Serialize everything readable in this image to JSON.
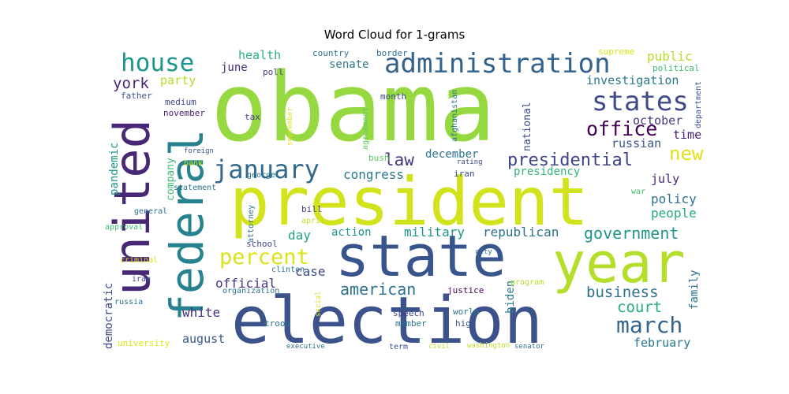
{
  "title": "Word Cloud for 1-grams",
  "chart_data": {
    "type": "wordcloud",
    "title": "Word Cloud for 1-grams",
    "colormap": "viridis",
    "background": "#ffffff",
    "words": [
      {
        "text": "obama",
        "weight": 100,
        "color": "#95d840"
      },
      {
        "text": "president",
        "weight": 82,
        "color": "#d2e21b"
      },
      {
        "text": "election",
        "weight": 76,
        "color": "#3b528b"
      },
      {
        "text": "state",
        "weight": 70,
        "color": "#39568c"
      },
      {
        "text": "year",
        "weight": 62,
        "color": "#b5de2b"
      },
      {
        "text": "united",
        "weight": 56,
        "color": "#482777"
      },
      {
        "text": "federal",
        "weight": 52,
        "color": "#26828e"
      },
      {
        "text": "administration",
        "weight": 34,
        "color": "#33638d"
      },
      {
        "text": "states",
        "weight": 30,
        "color": "#3e4a89"
      },
      {
        "text": "house",
        "weight": 28,
        "color": "#1f968b"
      },
      {
        "text": "january",
        "weight": 27,
        "color": "#31688e"
      },
      {
        "text": "percent",
        "weight": 24,
        "color": "#dde318"
      },
      {
        "text": "march",
        "weight": 24,
        "color": "#33638d"
      },
      {
        "text": "office",
        "weight": 22,
        "color": "#440154"
      },
      {
        "text": "new",
        "weight": 22,
        "color": "#dde318"
      },
      {
        "text": "presidential",
        "weight": 20,
        "color": "#414487"
      },
      {
        "text": "american",
        "weight": 18,
        "color": "#2c728e"
      },
      {
        "text": "government",
        "weight": 17,
        "color": "#1f968b"
      },
      {
        "text": "york",
        "weight": 17,
        "color": "#482777"
      },
      {
        "text": "law",
        "weight": 16,
        "color": "#453781"
      },
      {
        "text": "business",
        "weight": 16,
        "color": "#2c728e"
      },
      {
        "text": "court",
        "weight": 16,
        "color": "#25ab82"
      },
      {
        "text": "military",
        "weight": 14,
        "color": "#1f968b"
      },
      {
        "text": "republican",
        "weight": 14,
        "color": "#2c728e"
      },
      {
        "text": "congress",
        "weight": 14,
        "color": "#2a788e"
      },
      {
        "text": "white",
        "weight": 14,
        "color": "#472d7b"
      },
      {
        "text": "official",
        "weight": 14,
        "color": "#453781"
      },
      {
        "text": "investigation",
        "weight": 13,
        "color": "#2a788e"
      },
      {
        "text": "public",
        "weight": 13,
        "color": "#b5de2b"
      },
      {
        "text": "health",
        "weight": 13,
        "color": "#29af7f"
      },
      {
        "text": "senate",
        "weight": 12,
        "color": "#2a788e"
      },
      {
        "text": "party",
        "weight": 12,
        "color": "#b5de2b"
      },
      {
        "text": "june",
        "weight": 12,
        "color": "#472d7b"
      },
      {
        "text": "day",
        "weight": 13,
        "color": "#20a386"
      },
      {
        "text": "action",
        "weight": 12,
        "color": "#1f968b"
      },
      {
        "text": "case",
        "weight": 12,
        "color": "#3e4a89"
      },
      {
        "text": "policy",
        "weight": 13,
        "color": "#2c728e"
      },
      {
        "text": "people",
        "weight": 12,
        "color": "#25ab82"
      },
      {
        "text": "july",
        "weight": 12,
        "color": "#482677"
      },
      {
        "text": "time",
        "weight": 12,
        "color": "#481f70"
      },
      {
        "text": "russian",
        "weight": 12,
        "color": "#39568c"
      },
      {
        "text": "october",
        "weight": 12,
        "color": "#453781"
      },
      {
        "text": "presidency",
        "weight": 12,
        "color": "#33b679"
      },
      {
        "text": "december",
        "weight": 11,
        "color": "#2c728e"
      },
      {
        "text": "august",
        "weight": 12,
        "color": "#39568c"
      },
      {
        "text": "february",
        "weight": 12,
        "color": "#2a788e"
      },
      {
        "text": "national",
        "weight": 11,
        "color": "#3e4a89"
      },
      {
        "text": "biden",
        "weight": 11,
        "color": "#287c8e"
      },
      {
        "text": "democratic",
        "weight": 11,
        "color": "#3e4a89"
      },
      {
        "text": "pandemic",
        "weight": 11,
        "color": "#1f968b"
      },
      {
        "text": "family",
        "weight": 11,
        "color": "#2c728e"
      },
      {
        "text": "company",
        "weight": 10,
        "color": "#3fbc73"
      },
      {
        "text": "father",
        "weight": 9,
        "color": "#3b528b"
      },
      {
        "text": "medium",
        "weight": 9,
        "color": "#3e4a89"
      },
      {
        "text": "november",
        "weight": 9,
        "color": "#482777"
      },
      {
        "text": "country",
        "weight": 9,
        "color": "#2c728e"
      },
      {
        "text": "border",
        "weight": 9,
        "color": "#2c728e"
      },
      {
        "text": "poll",
        "weight": 9,
        "color": "#404387"
      },
      {
        "text": "month",
        "weight": 9,
        "color": "#3e4a89"
      },
      {
        "text": "tax",
        "weight": 9,
        "color": "#433e85"
      },
      {
        "text": "agreement",
        "weight": 9,
        "color": "#5ec962"
      },
      {
        "text": "afghanistan",
        "weight": 8,
        "color": "#2c728e"
      },
      {
        "text": "september",
        "weight": 8,
        "color": "#dde318"
      },
      {
        "text": "supreme",
        "weight": 9,
        "color": "#dde318"
      },
      {
        "text": "political",
        "weight": 9,
        "color": "#3fbc73"
      },
      {
        "text": "department",
        "weight": 8,
        "color": "#39568c"
      },
      {
        "text": "bush",
        "weight": 8,
        "color": "#5ec962"
      },
      {
        "text": "foreign",
        "weight": 8,
        "color": "#3b528b"
      },
      {
        "text": "bank",
        "weight": 8,
        "color": "#c0df25"
      },
      {
        "text": "george",
        "weight": 8,
        "color": "#2c728e"
      },
      {
        "text": "iran",
        "weight": 8,
        "color": "#3e4a89"
      },
      {
        "text": "rating",
        "weight": 7,
        "color": "#3e4a89"
      },
      {
        "text": "statement",
        "weight": 9,
        "color": "#2c728e"
      },
      {
        "text": "war",
        "weight": 8,
        "color": "#3fbc73"
      },
      {
        "text": "general",
        "weight": 9,
        "color": "#2c728e"
      },
      {
        "text": "bill",
        "weight": 9,
        "color": "#414487"
      },
      {
        "text": "april",
        "weight": 8,
        "color": "#c0df25"
      },
      {
        "text": "attorney",
        "weight": 8,
        "color": "#2c728e"
      },
      {
        "text": "approval",
        "weight": 8,
        "color": "#3fbc73"
      },
      {
        "text": "school",
        "weight": 9,
        "color": "#404387"
      },
      {
        "text": "criminal",
        "weight": 9,
        "color": "#dde318"
      },
      {
        "text": "clinton",
        "weight": 9,
        "color": "#2c728e"
      },
      {
        "text": "city",
        "weight": 7,
        "color": "#2c728e"
      },
      {
        "text": "iraq",
        "weight": 9,
        "color": "#3e4a89"
      },
      {
        "text": "organization",
        "weight": 9,
        "color": "#2c728e"
      },
      {
        "text": "justice",
        "weight": 9,
        "color": "#440154"
      },
      {
        "text": "program",
        "weight": 8,
        "color": "#b5de2b"
      },
      {
        "text": "russia",
        "weight": 9,
        "color": "#2c728e"
      },
      {
        "text": "social",
        "weight": 7,
        "color": "#dde318"
      },
      {
        "text": "world",
        "weight": 9,
        "color": "#2c728e"
      },
      {
        "text": "speech",
        "weight": 9,
        "color": "#414487"
      },
      {
        "text": "member",
        "weight": 9,
        "color": "#2c728e"
      },
      {
        "text": "high",
        "weight": 9,
        "color": "#3b528b"
      },
      {
        "text": "troop",
        "weight": 9,
        "color": "#2c728e"
      },
      {
        "text": "university",
        "weight": 9,
        "color": "#dde318"
      },
      {
        "text": "term",
        "weight": 8,
        "color": "#3b528b"
      },
      {
        "text": "executive",
        "weight": 7,
        "color": "#2c728e"
      },
      {
        "text": "civil",
        "weight": 7,
        "color": "#c0df25"
      },
      {
        "text": "washington",
        "weight": 7,
        "color": "#c0df25"
      },
      {
        "text": "senator",
        "weight": 7,
        "color": "#2c728e"
      }
    ]
  }
}
